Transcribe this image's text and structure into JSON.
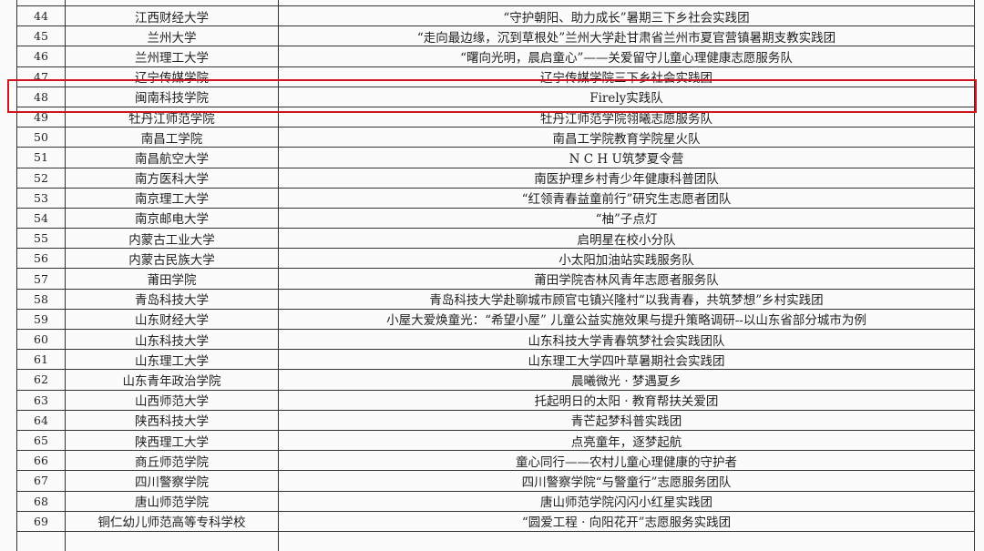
{
  "highlight_color": "#d0141b",
  "rows": [
    {
      "no": "",
      "school": "",
      "team": ""
    },
    {
      "no": "44",
      "school": "江西财经大学",
      "team": "“守护朝阳、助力成长”暑期三下乡社会实践团"
    },
    {
      "no": "45",
      "school": "兰州大学",
      "team": "“走向最边缘，沉到草根处”兰州大学赴甘肃省兰州市夏官营镇暑期支教实践团"
    },
    {
      "no": "46",
      "school": "兰州理工大学",
      "team": "“曙向光明，晨启童心”——关爱留守儿童心理健康志愿服务队"
    },
    {
      "no": "47",
      "school": "辽宁传媒学院",
      "team": "辽宁传媒学院三下乡社会实践团"
    },
    {
      "no": "48",
      "school": "闽南科技学院",
      "team": "Firely实践队",
      "highlighted": true
    },
    {
      "no": "49",
      "school": "牡丹江师范学院",
      "team": "牡丹江师范学院翎曦志愿服务队"
    },
    {
      "no": "50",
      "school": "南昌工学院",
      "team": "南昌工学院教育学院星火队"
    },
    {
      "no": "51",
      "school": "南昌航空大学",
      "team": "N C H U筑梦夏令营"
    },
    {
      "no": "52",
      "school": "南方医科大学",
      "team": "南医护理乡村青少年健康科普团队"
    },
    {
      "no": "53",
      "school": "南京理工大学",
      "team": "“红领青春益童前行”研究生志愿者团队"
    },
    {
      "no": "54",
      "school": "南京邮电大学",
      "team": "“柚”子点灯"
    },
    {
      "no": "55",
      "school": "内蒙古工业大学",
      "team": "启明星在校小分队"
    },
    {
      "no": "56",
      "school": "内蒙古民族大学",
      "team": "小太阳加油站实践服务队"
    },
    {
      "no": "57",
      "school": "莆田学院",
      "team": "莆田学院杏林风青年志愿者服务队"
    },
    {
      "no": "58",
      "school": "青岛科技大学",
      "team": "青岛科技大学赴聊城市顾官屯镇兴隆村“以我青春，共筑梦想”乡村实践团"
    },
    {
      "no": "59",
      "school": "山东财经大学",
      "team": "小屋大爱焕童光：“希望小屋” 儿童公益实施效果与提升策略调研--以山东省部分城市为例"
    },
    {
      "no": "60",
      "school": "山东科技大学",
      "team": "山东科技大学青春筑梦社会实践团队"
    },
    {
      "no": "61",
      "school": "山东理工大学",
      "team": "山东理工大学四叶草暑期社会实践团"
    },
    {
      "no": "62",
      "school": "山东青年政治学院",
      "team": "晨曦微光 · 梦遇夏乡"
    },
    {
      "no": "63",
      "school": "山西师范大学",
      "team": "托起明日的太阳 · 教育帮扶关爱团"
    },
    {
      "no": "64",
      "school": "陕西科技大学",
      "team": "青芒起梦科普实践团"
    },
    {
      "no": "65",
      "school": "陕西理工大学",
      "team": "点亮童年，逐梦起航"
    },
    {
      "no": "66",
      "school": "商丘师范学院",
      "team": "童心同行——农村儿童心理健康的守护者"
    },
    {
      "no": "67",
      "school": "四川警察学院",
      "team": "四川警察学院“与警童行”志愿服务团队"
    },
    {
      "no": "68",
      "school": "唐山师范学院",
      "team": "唐山师范学院闪闪小红星实践团"
    },
    {
      "no": "69",
      "school": "铜仁幼儿师范高等专科学校",
      "team": "“圆爱工程 · 向阳花开”志愿服务实践团"
    },
    {
      "no": "",
      "school": "",
      "team": ""
    }
  ]
}
